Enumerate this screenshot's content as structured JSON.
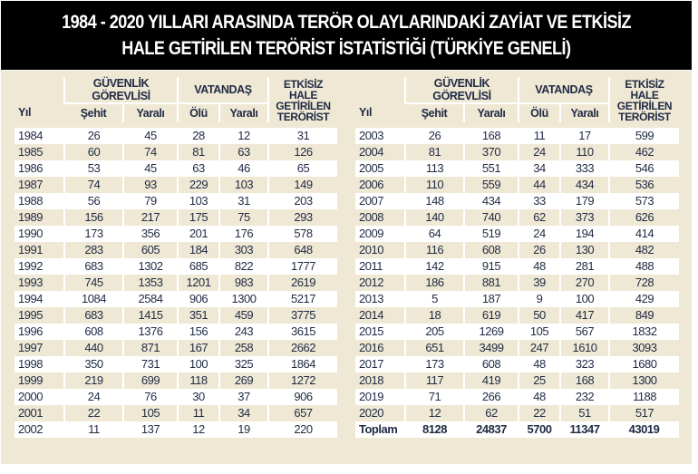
{
  "title": {
    "line1": "1984 - 2020 YILLARI ARASINDA TERÖR OLAYLARINDAKİ ZAYİAT VE ETKİSİZ",
    "line2": "HALE GETİRİLEN TERÖRİST İSTATİSTİĞİ (TÜRKİYE GENELİ)"
  },
  "headers": {
    "year": "Yıl",
    "security": "GÜVENLİK GÖREVLİSİ",
    "citizen": "VATANDAŞ",
    "neutralized": "ETKİSİZ HALE GETİRİLEN TERÖRİST",
    "martyr": "Şehit",
    "wounded": "Yaralı",
    "dead": "Ölü",
    "citizen_wounded": "Yaralı"
  },
  "colors": {
    "title_bg": "#000000",
    "panel_bg": "#efe8d4",
    "text": "#1f2a44"
  },
  "left_rows": [
    {
      "year": "1984",
      "sehit": "26",
      "yarali": "45",
      "olu": "28",
      "v_yarali": "12",
      "etkisiz": "31"
    },
    {
      "year": "1985",
      "sehit": "60",
      "yarali": "74",
      "olu": "81",
      "v_yarali": "63",
      "etkisiz": "126"
    },
    {
      "year": "1986",
      "sehit": "53",
      "yarali": "45",
      "olu": "63",
      "v_yarali": "46",
      "etkisiz": "65"
    },
    {
      "year": "1987",
      "sehit": "74",
      "yarali": "93",
      "olu": "229",
      "v_yarali": "103",
      "etkisiz": "149"
    },
    {
      "year": "1988",
      "sehit": "56",
      "yarali": "79",
      "olu": "103",
      "v_yarali": "31",
      "etkisiz": "203"
    },
    {
      "year": "1989",
      "sehit": "156",
      "yarali": "217",
      "olu": "175",
      "v_yarali": "75",
      "etkisiz": "293"
    },
    {
      "year": "1990",
      "sehit": "173",
      "yarali": "356",
      "olu": "201",
      "v_yarali": "176",
      "etkisiz": "578"
    },
    {
      "year": "1991",
      "sehit": "283",
      "yarali": "605",
      "olu": "184",
      "v_yarali": "303",
      "etkisiz": "648"
    },
    {
      "year": "1992",
      "sehit": "683",
      "yarali": "1302",
      "olu": "685",
      "v_yarali": "822",
      "etkisiz": "1777"
    },
    {
      "year": "1993",
      "sehit": "745",
      "yarali": "1353",
      "olu": "1201",
      "v_yarali": "983",
      "etkisiz": "2619"
    },
    {
      "year": "1994",
      "sehit": "1084",
      "yarali": "2584",
      "olu": "906",
      "v_yarali": "1300",
      "etkisiz": "5217"
    },
    {
      "year": "1995",
      "sehit": "683",
      "yarali": "1415",
      "olu": "351",
      "v_yarali": "459",
      "etkisiz": "3775"
    },
    {
      "year": "1996",
      "sehit": "608",
      "yarali": "1376",
      "olu": "156",
      "v_yarali": "243",
      "etkisiz": "3615"
    },
    {
      "year": "1997",
      "sehit": "440",
      "yarali": "871",
      "olu": "167",
      "v_yarali": "258",
      "etkisiz": "2662"
    },
    {
      "year": "1998",
      "sehit": "350",
      "yarali": "731",
      "olu": "100",
      "v_yarali": "325",
      "etkisiz": "1864"
    },
    {
      "year": "1999",
      "sehit": "219",
      "yarali": "699",
      "olu": "118",
      "v_yarali": "269",
      "etkisiz": "1272"
    },
    {
      "year": "2000",
      "sehit": "24",
      "yarali": "76",
      "olu": "30",
      "v_yarali": "37",
      "etkisiz": "906"
    },
    {
      "year": "2001",
      "sehit": "22",
      "yarali": "105",
      "olu": "11",
      "v_yarali": "34",
      "etkisiz": "657"
    },
    {
      "year": "2002",
      "sehit": "11",
      "yarali": "137",
      "olu": "12",
      "v_yarali": "19",
      "etkisiz": "220"
    }
  ],
  "right_rows": [
    {
      "year": "2003",
      "sehit": "26",
      "yarali": "168",
      "olu": "11",
      "v_yarali": "17",
      "etkisiz": "599"
    },
    {
      "year": "2004",
      "sehit": "81",
      "yarali": "370",
      "olu": "24",
      "v_yarali": "110",
      "etkisiz": "462"
    },
    {
      "year": "2005",
      "sehit": "113",
      "yarali": "551",
      "olu": "34",
      "v_yarali": "333",
      "etkisiz": "546"
    },
    {
      "year": "2006",
      "sehit": "110",
      "yarali": "559",
      "olu": "44",
      "v_yarali": "434",
      "etkisiz": "536"
    },
    {
      "year": "2007",
      "sehit": "148",
      "yarali": "434",
      "olu": "33",
      "v_yarali": "179",
      "etkisiz": "573"
    },
    {
      "year": "2008",
      "sehit": "140",
      "yarali": "740",
      "olu": "62",
      "v_yarali": "373",
      "etkisiz": "626"
    },
    {
      "year": "2009",
      "sehit": "64",
      "yarali": "519",
      "olu": "24",
      "v_yarali": "194",
      "etkisiz": "414"
    },
    {
      "year": "2010",
      "sehit": "116",
      "yarali": "608",
      "olu": "26",
      "v_yarali": "130",
      "etkisiz": "482"
    },
    {
      "year": "2011",
      "sehit": "142",
      "yarali": "915",
      "olu": "48",
      "v_yarali": "281",
      "etkisiz": "488"
    },
    {
      "year": "2012",
      "sehit": "186",
      "yarali": "881",
      "olu": "39",
      "v_yarali": "270",
      "etkisiz": "728"
    },
    {
      "year": "2013",
      "sehit": "5",
      "yarali": "187",
      "olu": "9",
      "v_yarali": "100",
      "etkisiz": "429"
    },
    {
      "year": "2014",
      "sehit": "18",
      "yarali": "619",
      "olu": "50",
      "v_yarali": "417",
      "etkisiz": "849"
    },
    {
      "year": "2015",
      "sehit": "205",
      "yarali": "1269",
      "olu": "105",
      "v_yarali": "567",
      "etkisiz": "1832"
    },
    {
      "year": "2016",
      "sehit": "651",
      "yarali": "3499",
      "olu": "247",
      "v_yarali": "1610",
      "etkisiz": "3093"
    },
    {
      "year": "2017",
      "sehit": "173",
      "yarali": "608",
      "olu": "48",
      "v_yarali": "323",
      "etkisiz": "1680"
    },
    {
      "year": "2018",
      "sehit": "117",
      "yarali": "419",
      "olu": "25",
      "v_yarali": "168",
      "etkisiz": "1300"
    },
    {
      "year": "2019",
      "sehit": "71",
      "yarali": "266",
      "olu": "48",
      "v_yarali": "232",
      "etkisiz": "1188"
    },
    {
      "year": "2020",
      "sehit": "12",
      "yarali": "62",
      "olu": "22",
      "v_yarali": "51",
      "etkisiz": "517"
    }
  ],
  "total": {
    "year": "Toplam",
    "sehit": "8128",
    "yarali": "24837",
    "olu": "5700",
    "v_yarali": "11347",
    "etkisiz": "43019"
  }
}
